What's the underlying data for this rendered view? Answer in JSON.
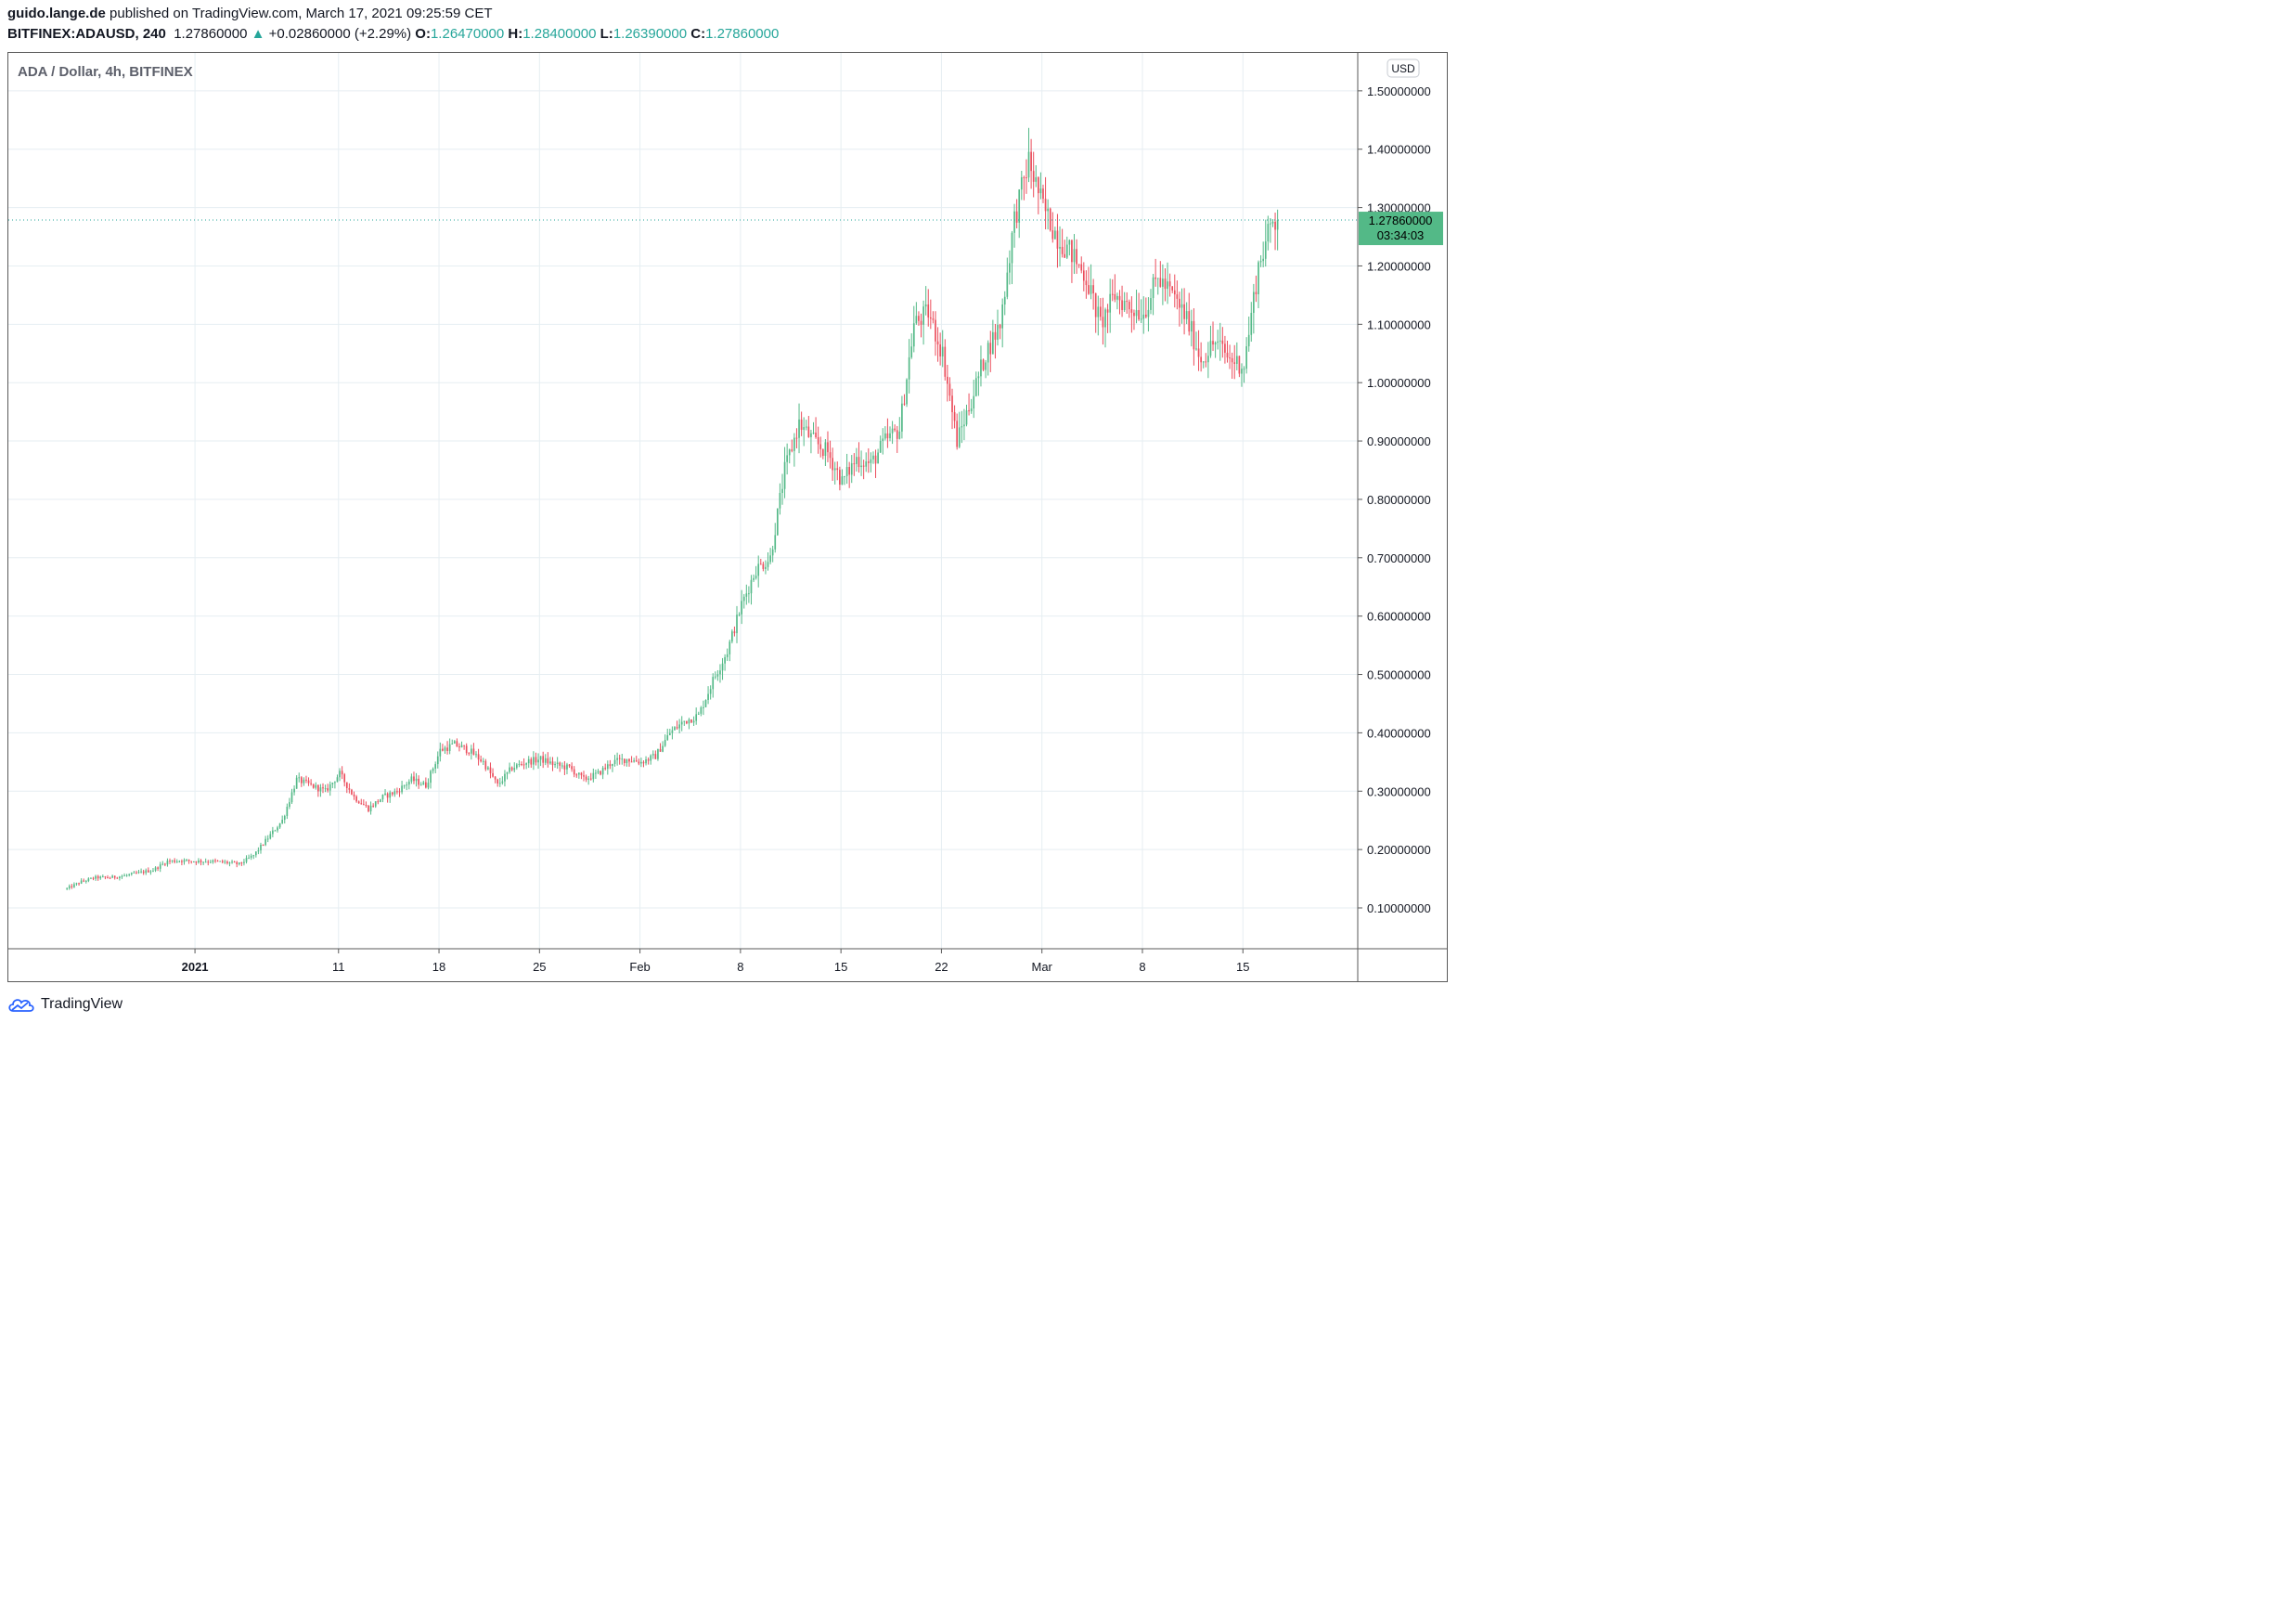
{
  "header": {
    "publisher": "guido.lange.de",
    "published_text": "published on TradingView.com, March 17, 2021 09:25:59 CET",
    "symbol": "BITFINEX:ADAUSD, 240",
    "last": "1.27860000",
    "change_arrow": "▲",
    "change": "+0.02860000 (+2.29%)",
    "o_label": "O:",
    "o_value": "1.26470000",
    "h_label": "H:",
    "h_value": "1.28400000",
    "l_label": "L:",
    "l_value": "1.26390000",
    "c_label": "C:",
    "c_value": "1.27860000"
  },
  "footer": {
    "brand": "TradingView",
    "logo_icon": "tradingview-cloud-icon"
  },
  "colors": {
    "up": "#53b987",
    "down": "#eb4d5c",
    "grid": "#e6eef2",
    "text": "#131722",
    "price_line": "#26a69a"
  },
  "chart_data": {
    "type": "candlestick",
    "title": "ADA / Dollar, 4h, BITFINEX",
    "currency": "USD",
    "interval": "4h",
    "ylim": [
      0.03,
      1.565
    ],
    "y_ticks": [
      {
        "value": 1.5,
        "label": "1.50000000"
      },
      {
        "value": 1.4,
        "label": "1.40000000"
      },
      {
        "value": 1.3,
        "label": "1.30000000"
      },
      {
        "value": 1.2,
        "label": "1.20000000"
      },
      {
        "value": 1.1,
        "label": "1.10000000"
      },
      {
        "value": 1.0,
        "label": "1.00000000"
      },
      {
        "value": 0.9,
        "label": "0.90000000"
      },
      {
        "value": 0.8,
        "label": "0.80000000"
      },
      {
        "value": 0.7,
        "label": "0.70000000"
      },
      {
        "value": 0.6,
        "label": "0.60000000"
      },
      {
        "value": 0.5,
        "label": "0.50000000"
      },
      {
        "value": 0.4,
        "label": "0.40000000"
      },
      {
        "value": 0.3,
        "label": "0.30000000"
      },
      {
        "value": 0.2,
        "label": "0.20000000"
      },
      {
        "value": 0.1,
        "label": "0.10000000"
      }
    ],
    "x_range": [
      "2020-12-19",
      "2021-03-23"
    ],
    "x_ticks": [
      {
        "date": "2021-01-01",
        "label": "2021",
        "bold": true
      },
      {
        "date": "2021-01-11",
        "label": "11"
      },
      {
        "date": "2021-01-18",
        "label": "18"
      },
      {
        "date": "2021-01-25",
        "label": "25"
      },
      {
        "date": "2021-02-01",
        "label": "Feb"
      },
      {
        "date": "2021-02-08",
        "label": "8"
      },
      {
        "date": "2021-02-15",
        "label": "15"
      },
      {
        "date": "2021-02-22",
        "label": "22"
      },
      {
        "date": "2021-03-01",
        "label": "Mar"
      },
      {
        "date": "2021-03-08",
        "label": "8"
      },
      {
        "date": "2021-03-15",
        "label": "15"
      }
    ],
    "last_price": {
      "value": 1.2786,
      "label": "1.27860000",
      "countdown": "03:34:03"
    },
    "grid": true,
    "daily_closes": [
      [
        "2020-12-23",
        0.133
      ],
      [
        "2020-12-24",
        0.145
      ],
      [
        "2020-12-25",
        0.152
      ],
      [
        "2020-12-26",
        0.152
      ],
      [
        "2020-12-27",
        0.155
      ],
      [
        "2020-12-28",
        0.16
      ],
      [
        "2020-12-29",
        0.165
      ],
      [
        "2020-12-30",
        0.18
      ],
      [
        "2020-12-31",
        0.181
      ],
      [
        "2021-01-01",
        0.18
      ],
      [
        "2021-01-02",
        0.18
      ],
      [
        "2021-01-03",
        0.178
      ],
      [
        "2021-01-04",
        0.175
      ],
      [
        "2021-01-05",
        0.19
      ],
      [
        "2021-01-06",
        0.22
      ],
      [
        "2021-01-07",
        0.25
      ],
      [
        "2021-01-08",
        0.32
      ],
      [
        "2021-01-09",
        0.31
      ],
      [
        "2021-01-10",
        0.3
      ],
      [
        "2021-01-11",
        0.33
      ],
      [
        "2021-01-12",
        0.29
      ],
      [
        "2021-01-13",
        0.27
      ],
      [
        "2021-01-14",
        0.29
      ],
      [
        "2021-01-15",
        0.3
      ],
      [
        "2021-01-16",
        0.32
      ],
      [
        "2021-01-17",
        0.31
      ],
      [
        "2021-01-18",
        0.37
      ],
      [
        "2021-01-19",
        0.38
      ],
      [
        "2021-01-20",
        0.37
      ],
      [
        "2021-01-21",
        0.35
      ],
      [
        "2021-01-22",
        0.31
      ],
      [
        "2021-01-23",
        0.34
      ],
      [
        "2021-01-24",
        0.35
      ],
      [
        "2021-01-25",
        0.355
      ],
      [
        "2021-01-26",
        0.345
      ],
      [
        "2021-01-27",
        0.34
      ],
      [
        "2021-01-28",
        0.32
      ],
      [
        "2021-01-29",
        0.33
      ],
      [
        "2021-01-30",
        0.35
      ],
      [
        "2021-01-31",
        0.355
      ],
      [
        "2021-02-01",
        0.35
      ],
      [
        "2021-02-02",
        0.36
      ],
      [
        "2021-02-03",
        0.4
      ],
      [
        "2021-02-04",
        0.42
      ],
      [
        "2021-02-05",
        0.43
      ],
      [
        "2021-02-06",
        0.49
      ],
      [
        "2021-02-07",
        0.54
      ],
      [
        "2021-02-08",
        0.62
      ],
      [
        "2021-02-09",
        0.68
      ],
      [
        "2021-02-10",
        0.7
      ],
      [
        "2021-02-11",
        0.85
      ],
      [
        "2021-02-12",
        0.93
      ],
      [
        "2021-02-13",
        0.9
      ],
      [
        "2021-02-14",
        0.88
      ],
      [
        "2021-02-15",
        0.83
      ],
      [
        "2021-02-16",
        0.87
      ],
      [
        "2021-02-17",
        0.86
      ],
      [
        "2021-02-18",
        0.9
      ],
      [
        "2021-02-19",
        0.92
      ],
      [
        "2021-02-20",
        1.1
      ],
      [
        "2021-02-21",
        1.12
      ],
      [
        "2021-02-22",
        1.05
      ],
      [
        "2021-02-23",
        0.9
      ],
      [
        "2021-02-24",
        0.97
      ],
      [
        "2021-02-25",
        1.05
      ],
      [
        "2021-02-26",
        1.1
      ],
      [
        "2021-02-27",
        1.28
      ],
      [
        "2021-02-28",
        1.38
      ],
      [
        "2021-03-01",
        1.3
      ],
      [
        "2021-03-02",
        1.25
      ],
      [
        "2021-03-03",
        1.22
      ],
      [
        "2021-03-04",
        1.18
      ],
      [
        "2021-03-05",
        1.1
      ],
      [
        "2021-03-06",
        1.15
      ],
      [
        "2021-03-07",
        1.13
      ],
      [
        "2021-03-08",
        1.12
      ],
      [
        "2021-03-09",
        1.18
      ],
      [
        "2021-03-10",
        1.15
      ],
      [
        "2021-03-11",
        1.11
      ],
      [
        "2021-03-12",
        1.04
      ],
      [
        "2021-03-13",
        1.07
      ],
      [
        "2021-03-14",
        1.04
      ],
      [
        "2021-03-15",
        1.03
      ],
      [
        "2021-03-16",
        1.2
      ],
      [
        "2021-03-17",
        1.2786
      ]
    ]
  }
}
